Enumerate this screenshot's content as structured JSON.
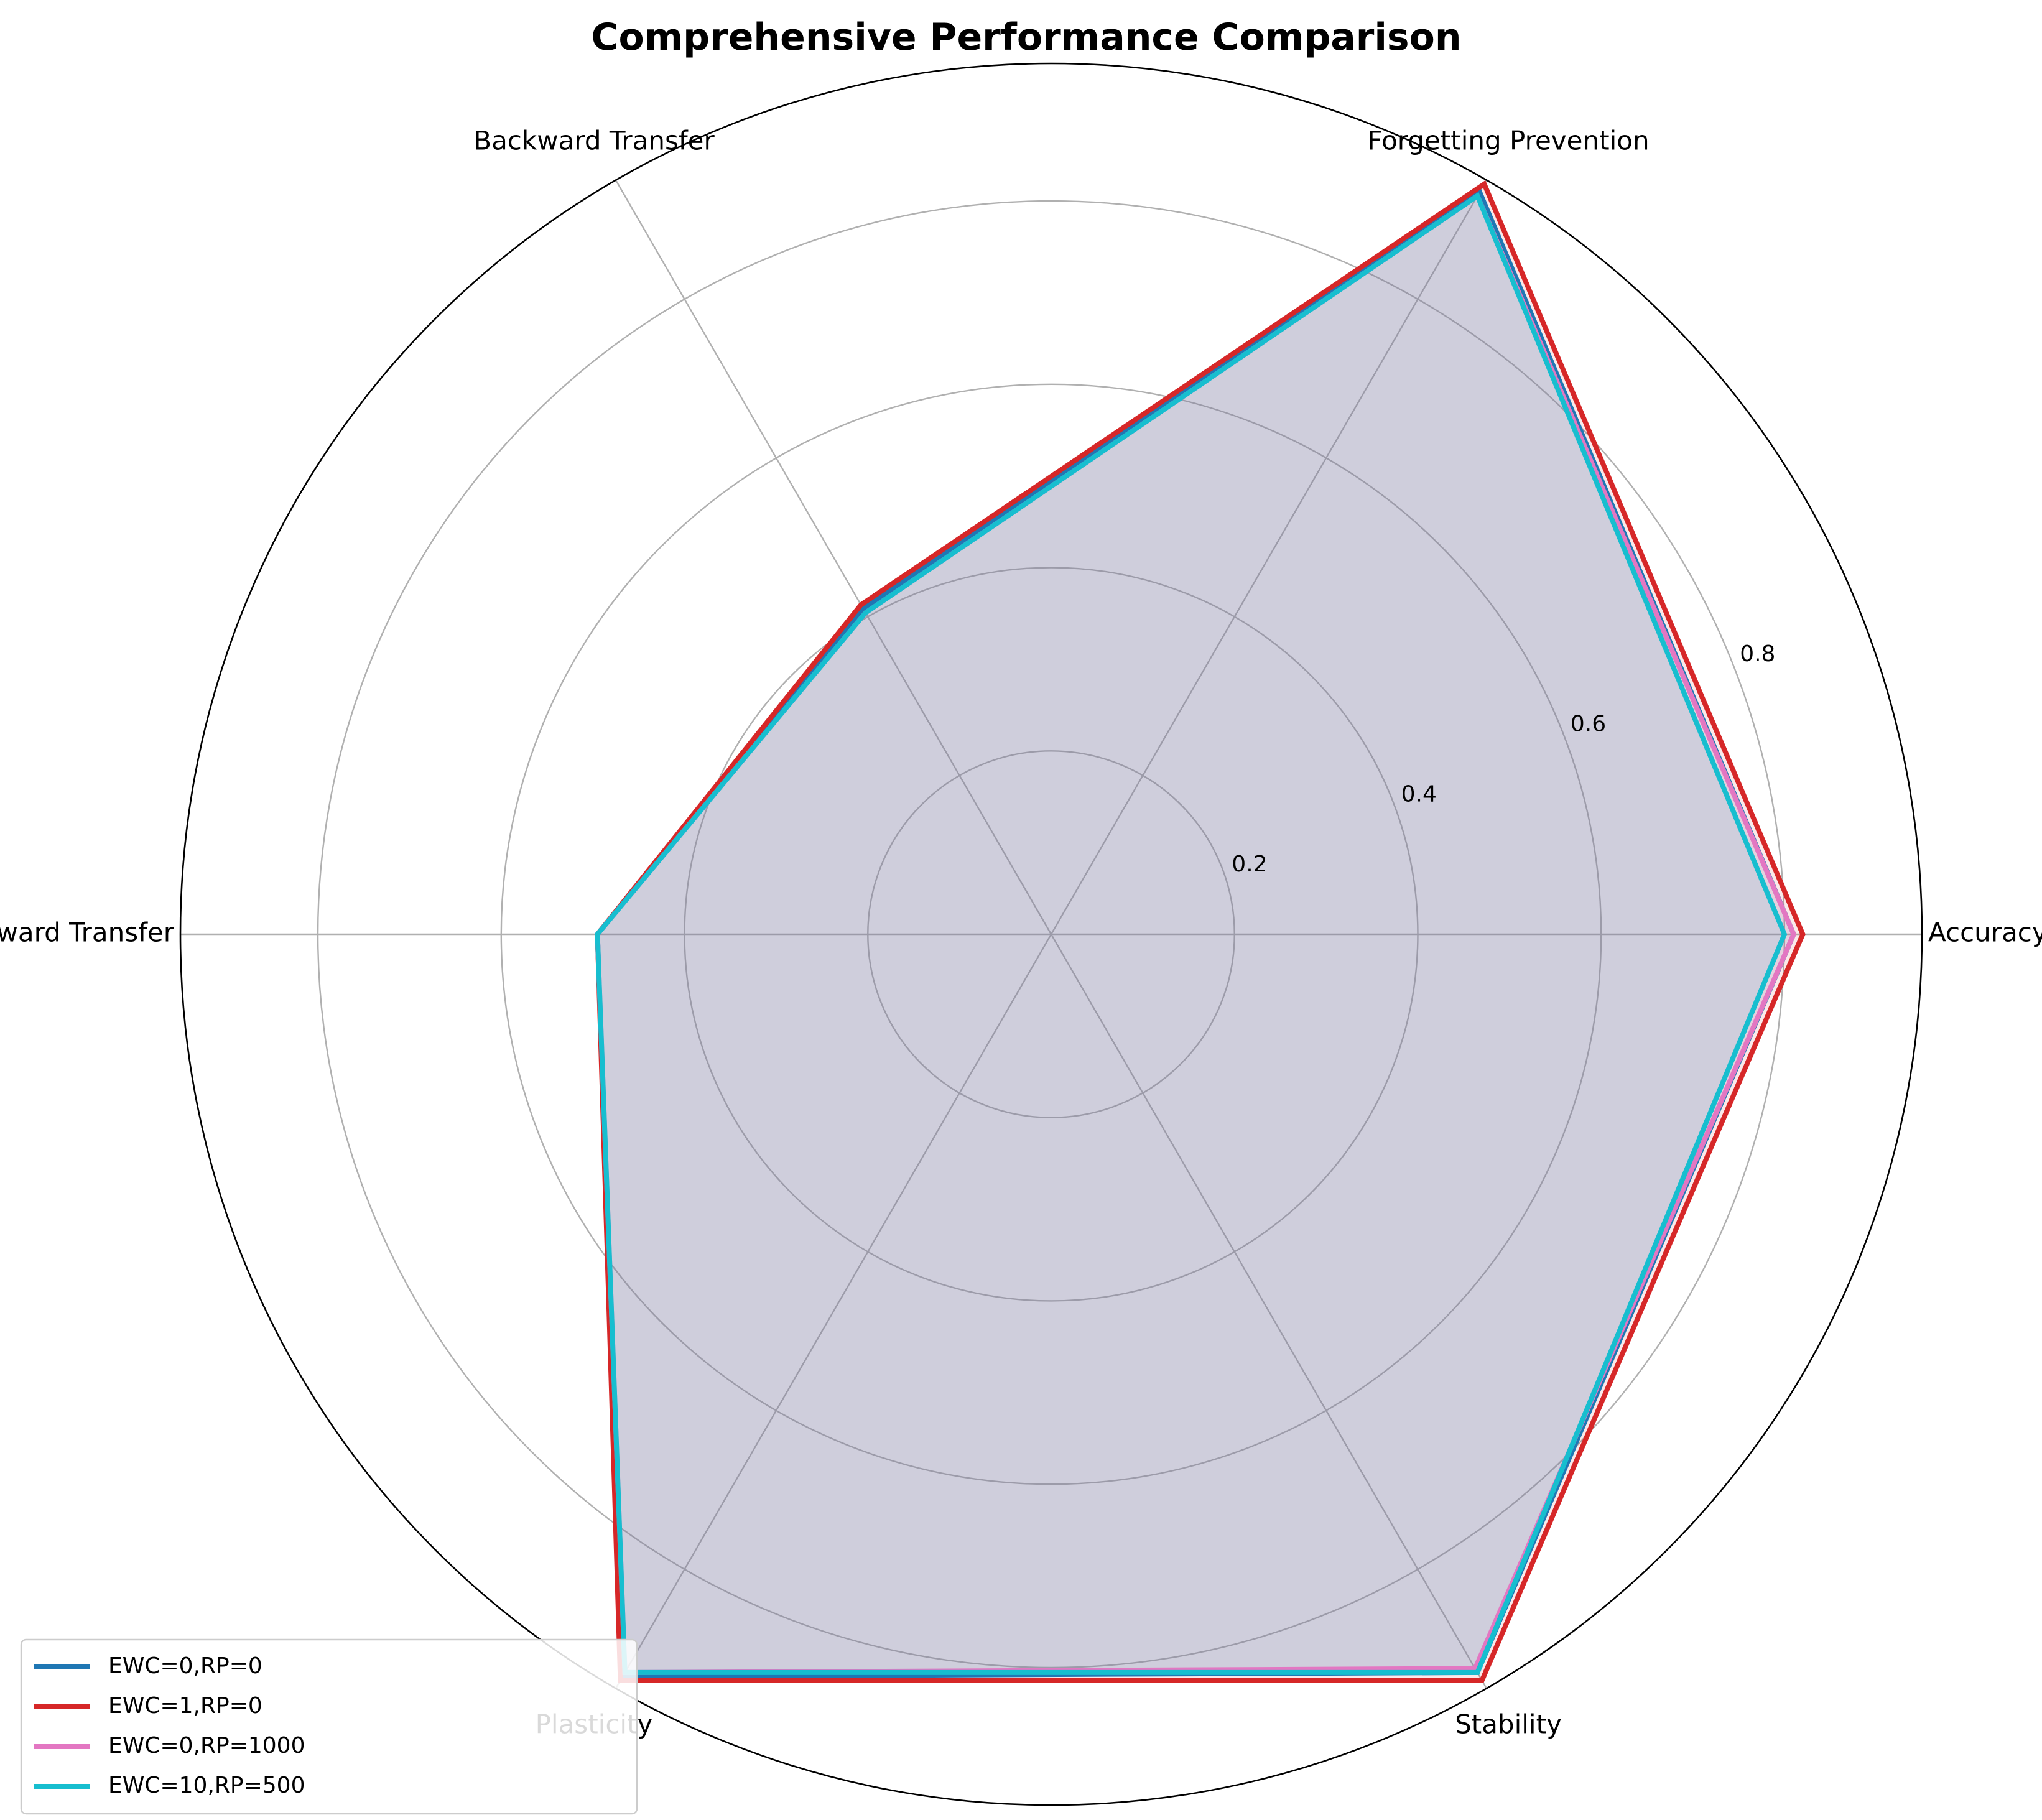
{
  "chart_data": {
    "type": "radar",
    "title": "Comprehensive Performance Comparison",
    "axes": [
      "Accuracy",
      "Forgetting Prevention",
      "Backward Transfer",
      "Forward Transfer",
      "Plasticity",
      "Stability"
    ],
    "rlim": [
      0,
      0.95
    ],
    "rticks": [
      0.2,
      0.4,
      0.6,
      0.8
    ],
    "rtick_labels": [
      "0.2",
      "0.4",
      "0.6",
      "0.8"
    ],
    "grid": true,
    "legend_position": "lower-left",
    "series": [
      {
        "name": "EWC=0,RP=0",
        "color": "#1f77b4",
        "values": [
          0.81,
          0.935,
          0.41,
          0.495,
          0.935,
          0.93
        ]
      },
      {
        "name": "EWC=1,RP=0",
        "color": "#d62728",
        "values": [
          0.82,
          0.945,
          0.415,
          0.495,
          0.94,
          0.94
        ]
      },
      {
        "name": "EWC=0,RP=1000",
        "color": "#e377c2",
        "values": [
          0.81,
          0.93,
          0.405,
          0.495,
          0.93,
          0.925
        ]
      },
      {
        "name": "EWC=10,RP=500",
        "color": "#17becf",
        "values": [
          0.8,
          0.93,
          0.405,
          0.495,
          0.93,
          0.93
        ]
      }
    ]
  }
}
